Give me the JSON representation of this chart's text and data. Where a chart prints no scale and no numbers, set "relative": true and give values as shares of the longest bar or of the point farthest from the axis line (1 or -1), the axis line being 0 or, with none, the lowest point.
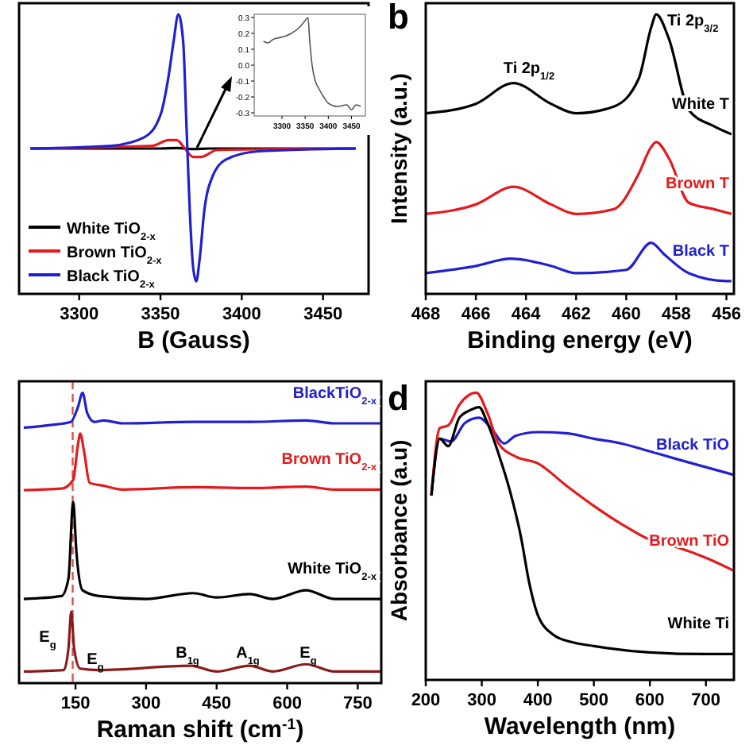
{
  "chart_data": [
    {
      "type": "line",
      "xlabel": "B (Gauss)",
      "xlim": [
        3263,
        3478
      ],
      "xticks": [
        3300,
        3350,
        3400,
        3450
      ],
      "relative": true,
      "legend": "bottom left",
      "series": [
        {
          "name": "White TiO$_{2-x}$",
          "color": "#000000",
          "x": [
            3270,
            3350,
            3360,
            3365,
            3370,
            3380,
            3470
          ],
          "values": [
            0.52,
            0.52,
            0.522,
            0.52,
            0.518,
            0.52,
            0.52
          ]
        },
        {
          "name": "Brown TiO$_{2-x}$",
          "color": "#e41a1c",
          "x": [
            3270,
            3345,
            3355,
            3360,
            3365,
            3370,
            3375,
            3385,
            3470
          ],
          "values": [
            0.52,
            0.53,
            0.55,
            0.55,
            0.52,
            0.49,
            0.49,
            0.515,
            0.52
          ]
        },
        {
          "name": "Black TiO$_{2-x}$",
          "color": "#2020d0",
          "x": [
            3270,
            3320,
            3340,
            3350,
            3355,
            3358,
            3361,
            3364,
            3366,
            3368,
            3370,
            3372,
            3374,
            3377,
            3382,
            3390,
            3410,
            3470
          ],
          "values": [
            0.52,
            0.53,
            0.56,
            0.64,
            0.78,
            0.9,
            1,
            0.9,
            0.6,
            0.3,
            0.1,
            0.045,
            0.12,
            0.3,
            0.42,
            0.48,
            0.51,
            0.52
          ]
        }
      ]
    },
    {
      "type": "line",
      "xlim": [
        3240,
        3480
      ],
      "xticks": [
        3300,
        3350,
        3400,
        3450
      ],
      "ylim": [
        -0.32,
        0.32
      ],
      "yticks": [
        -0.3,
        -0.2,
        -0.1,
        {
          "value": 0,
          "label": "0.0"
        },
        0.1,
        0.2,
        0.3
      ],
      "series": [
        {
          "color": "#555555",
          "x": [
            3260,
            3270,
            3280,
            3290,
            3305,
            3320,
            3335,
            3350,
            3356,
            3360,
            3365,
            3372,
            3380,
            3390,
            3400,
            3420,
            3440,
            3450,
            3460,
            3470
          ],
          "values": [
            0.15,
            0.14,
            0.16,
            0.17,
            0.18,
            0.2,
            0.23,
            0.28,
            0.3,
            0.15,
            0,
            -0.1,
            -0.15,
            -0.2,
            -0.24,
            -0.26,
            -0.25,
            -0.28,
            -0.25,
            -0.26
          ]
        }
      ]
    },
    {
      "type": "line",
      "xlabel": "Binding energy (eV)",
      "ylabel": "Intensity (a.u.)",
      "xlim": [
        468,
        455.7
      ],
      "xticks": [
        468,
        466,
        464,
        462,
        460,
        458,
        456
      ],
      "relative": true,
      "annotations": [
        "b",
        "Ti 2p$_{1/2}$",
        "Ti 2p$_{3/2}$"
      ],
      "series": [
        {
          "name": "White T",
          "color": "#000000",
          "x": [
            468,
            466,
            464.5,
            463,
            462,
            460.5,
            459.5,
            459,
            458.8,
            458.3,
            457.5,
            456.5,
            455.8
          ],
          "values": [
            0.646,
            0.68,
            0.754,
            0.68,
            0.646,
            0.67,
            0.77,
            0.954,
            1,
            0.914,
            0.657,
            0.6,
            0.571
          ]
        },
        {
          "name": "Brown T",
          "color": "#e41a1c",
          "x": [
            468,
            466,
            464.5,
            463,
            462,
            460.5,
            459.5,
            459,
            458.8,
            458.3,
            457.5,
            456.5,
            455.8
          ],
          "values": [
            0.286,
            0.32,
            0.383,
            0.32,
            0.286,
            0.303,
            0.43,
            0.526,
            0.543,
            0.486,
            0.326,
            0.303,
            0.286
          ]
        },
        {
          "name": "Black T",
          "color": "#2020d0",
          "x": [
            468,
            466,
            464.6,
            463,
            462,
            460,
            459,
            458.5,
            457.5,
            456,
            455.8
          ],
          "values": [
            0.074,
            0.1,
            0.126,
            0.1,
            0.074,
            0.086,
            0.183,
            0.143,
            0.074,
            0.046,
            0.046
          ]
        }
      ]
    },
    {
      "type": "line",
      "xlabel": "Raman shift (cm$^{-1}$)",
      "xlim": [
        30,
        800
      ],
      "xticks": [
        150,
        300,
        450,
        600,
        750
      ],
      "relative": true,
      "ref_lines": [
        {
          "axis": "x",
          "value": 144,
          "color": "#d9534f",
          "line_style": "dashed"
        }
      ],
      "annotations": [
        "E$_{g}$",
        "E$_{g}$",
        "B$_{1g}$",
        "A$_{1g}$",
        "E$_{g}$"
      ],
      "series": [
        {
          "name": "BlackTiO$_{2-x}$",
          "color": "#2020d0",
          "x": [
            40,
            100,
            140,
            155,
            165,
            175,
            190,
            210,
            250,
            400,
            520,
            640,
            700,
            800
          ],
          "values": [
            0.88,
            0.89,
            0.9,
            0.95,
            1,
            0.93,
            0.9,
            0.905,
            0.895,
            0.9,
            0.9,
            0.905,
            0.895,
            0.895
          ]
        },
        {
          "name": "Brown TiO$_{2-x}$",
          "color": "#e41a1c",
          "x": [
            40,
            120,
            145,
            155,
            160,
            168,
            180,
            210,
            250,
            400,
            520,
            640,
            700,
            800
          ],
          "values": [
            0.665,
            0.67,
            0.7,
            0.82,
            0.86,
            0.8,
            0.69,
            0.68,
            0.667,
            0.675,
            0.672,
            0.677,
            0.667,
            0.667
          ]
        },
        {
          "name": "White TiO$_{2-x}$",
          "color": "#000000",
          "x": [
            40,
            120,
            135,
            145,
            152,
            165,
            200,
            300,
            400,
            450,
            520,
            570,
            640,
            700,
            800
          ],
          "values": [
            0.29,
            0.3,
            0.36,
            0.623,
            0.45,
            0.32,
            0.3,
            0.29,
            0.31,
            0.295,
            0.307,
            0.29,
            0.32,
            0.29,
            0.29
          ]
        },
        {
          "color": "#8b1a1a",
          "x": [
            40,
            125,
            135,
            141,
            147,
            160,
            200,
            395,
            450,
            520,
            570,
            640,
            700,
            800
          ],
          "values": [
            0.04,
            0.045,
            0.12,
            0.246,
            0.12,
            0.05,
            0.045,
            0.06,
            0.04,
            0.06,
            0.04,
            0.065,
            0.04,
            0.04
          ]
        }
      ]
    },
    {
      "type": "line",
      "xlabel": "Wavelength (nm)",
      "ylabel": "Absorbance (a.u)",
      "xlim": [
        200,
        750
      ],
      "xticks": [
        200,
        300,
        400,
        500,
        600,
        700
      ],
      "relative": true,
      "annotations": [
        "d"
      ],
      "series": [
        {
          "name": "Black TiO",
          "color": "#2020d0",
          "x": [
            210,
            225,
            245,
            270,
            295,
            320,
            340,
            360,
            400,
            450,
            500,
            550,
            600,
            650,
            700,
            750
          ],
          "values": [
            0.642,
            0.84,
            0.83,
            0.895,
            0.913,
            0.868,
            0.823,
            0.85,
            0.863,
            0.859,
            0.84,
            0.823,
            0.796,
            0.768,
            0.741,
            0.714
          ]
        },
        {
          "name": "Brown TiO",
          "color": "#e41a1c",
          "x": [
            210,
            225,
            240,
            260,
            290,
            310,
            330,
            360,
            400,
            450,
            500,
            550,
            600,
            650,
            700,
            750
          ],
          "values": [
            0.642,
            0.877,
            0.886,
            0.958,
            1,
            0.93,
            0.823,
            0.778,
            0.754,
            0.678,
            0.606,
            0.542,
            0.488,
            0.461,
            0.425,
            0.38
          ]
        },
        {
          "name": "White Ti",
          "color": "#000000",
          "x": [
            210,
            225,
            240,
            260,
            280,
            295,
            310,
            330,
            350,
            370,
            385,
            400,
            430,
            460,
            500,
            600,
            700,
            750
          ],
          "values": [
            0.642,
            0.84,
            0.814,
            0.913,
            0.94,
            0.95,
            0.895,
            0.787,
            0.66,
            0.497,
            0.335,
            0.226,
            0.154,
            0.132,
            0.118,
            0.096,
            0.09,
            0.09
          ]
        }
      ]
    }
  ]
}
